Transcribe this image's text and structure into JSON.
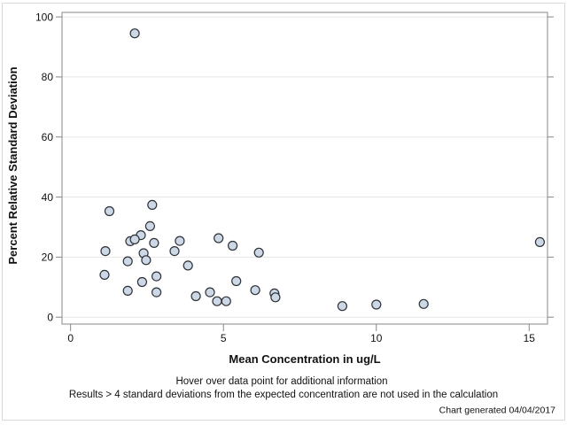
{
  "chart_data": {
    "type": "scatter",
    "title": "",
    "xlabel": "Mean Concentration in ug/L",
    "ylabel": "Percent Relative Standard Deviation",
    "x_ticks": [
      0,
      5,
      10,
      15
    ],
    "y_ticks": [
      0,
      20,
      40,
      60,
      80,
      100
    ],
    "xlim": [
      -0.28,
      15.6
    ],
    "ylim": [
      -2.3,
      101.5
    ],
    "grid": "horizontal-only",
    "legend": "none",
    "points": [
      [
        2.1,
        94.5
      ],
      [
        2.67,
        37.4
      ],
      [
        1.27,
        35.3
      ],
      [
        2.6,
        30.3
      ],
      [
        2.3,
        27.3
      ],
      [
        1.95,
        25.3
      ],
      [
        2.1,
        25.9
      ],
      [
        2.73,
        24.7
      ],
      [
        3.57,
        25.4
      ],
      [
        4.84,
        26.3
      ],
      [
        5.3,
        23.8
      ],
      [
        1.14,
        22.0
      ],
      [
        3.4,
        22.0
      ],
      [
        6.16,
        21.5
      ],
      [
        2.39,
        21.3
      ],
      [
        2.47,
        19.0
      ],
      [
        1.87,
        18.6
      ],
      [
        3.84,
        17.2
      ],
      [
        1.11,
        14.1
      ],
      [
        2.81,
        13.6
      ],
      [
        2.34,
        11.7
      ],
      [
        5.42,
        12.0
      ],
      [
        1.87,
        8.8
      ],
      [
        2.81,
        8.3
      ],
      [
        4.1,
        7.0
      ],
      [
        4.56,
        8.3
      ],
      [
        4.79,
        5.3
      ],
      [
        5.09,
        5.3
      ],
      [
        6.04,
        9.0
      ],
      [
        6.67,
        7.9
      ],
      [
        6.7,
        6.6
      ],
      [
        8.89,
        3.7
      ],
      [
        10.0,
        4.2
      ],
      [
        11.55,
        4.4
      ],
      [
        15.35,
        25.0
      ]
    ],
    "marker": {
      "shape": "circle",
      "fill": "#ccd8e5",
      "stroke": "#2e3238",
      "radius": 5
    }
  },
  "footnotes": {
    "hover": "Hover over data point for additional information",
    "exclusion": "Results > 4 standard deviations from the expected concentration are not used in the calculation",
    "generated": "Chart generated 04/04/2017"
  },
  "colors": {
    "frame": "#878787",
    "gridline": "#e8e8e8",
    "tick": "#878787",
    "text": "#111111",
    "outer_border": "#d9d9d9",
    "background": "#ffffff"
  }
}
